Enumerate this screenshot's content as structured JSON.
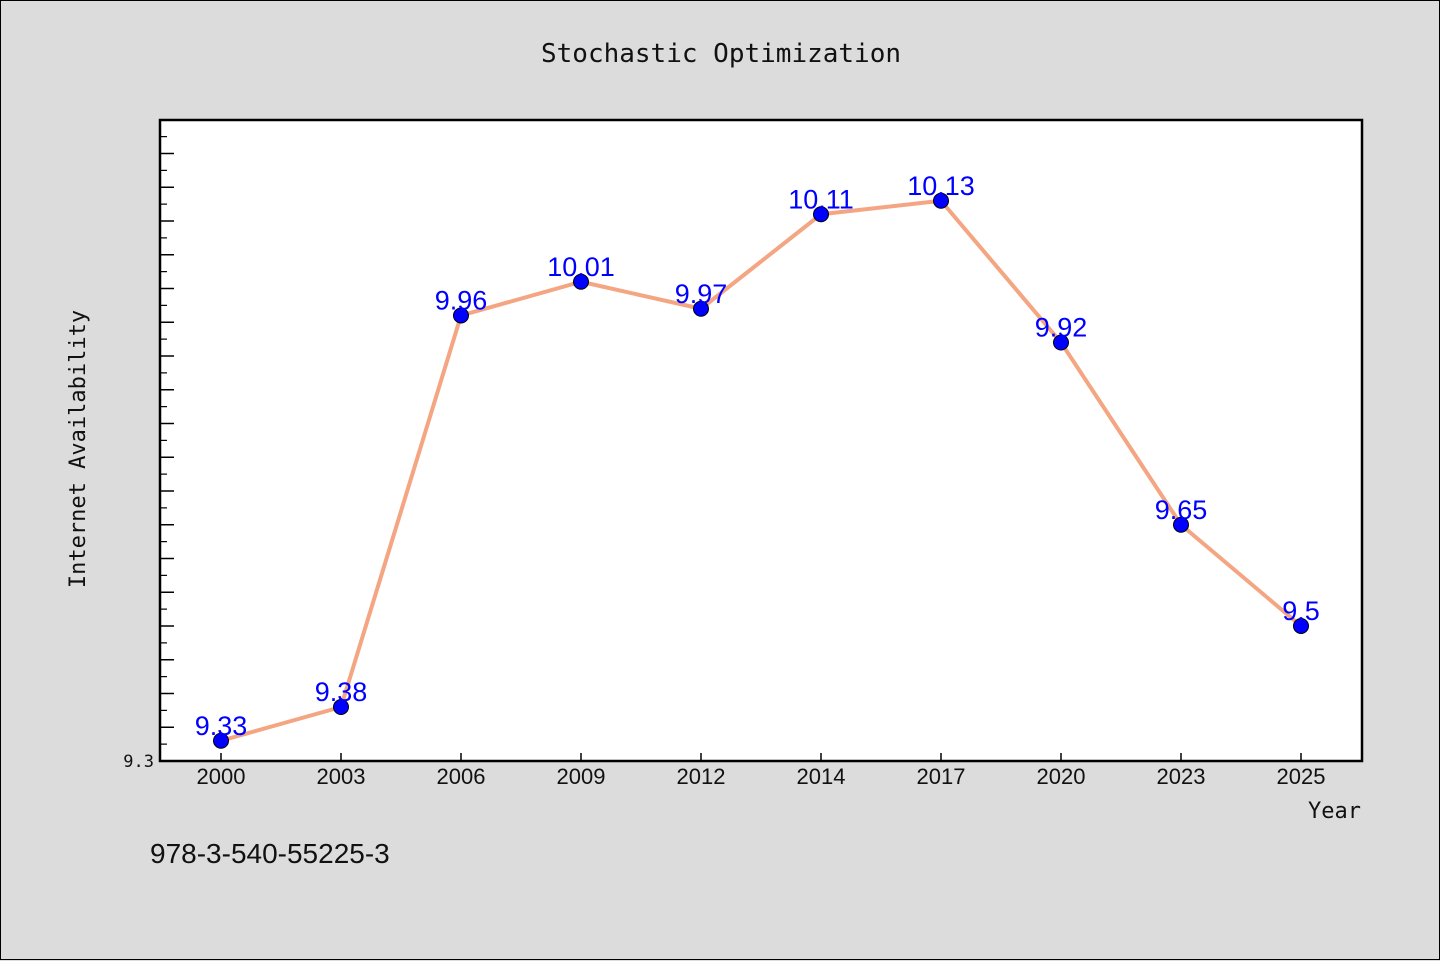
{
  "chart_data": {
    "type": "line",
    "title": "Stochastic Optimization",
    "xlabel": "Year",
    "ylabel": "Internet Availability",
    "categories": [
      "2000",
      "2003",
      "2006",
      "2009",
      "2012",
      "2014",
      "2017",
      "2020",
      "2023",
      "2025"
    ],
    "series": [
      {
        "values": [
          9.33,
          9.38,
          9.96,
          10.01,
          9.97,
          10.11,
          10.13,
          9.92,
          9.65,
          9.5
        ],
        "line_color": "#f4a582",
        "marker_color": "#0000ff"
      }
    ],
    "data_labels": [
      "9.33",
      "9.38",
      "9.96",
      "10.01",
      "9.97",
      "10.11",
      "10.13",
      "9.92",
      "9.65",
      "9.5"
    ],
    "data_label_color": "#0000ff",
    "ylim": [
      9.3,
      10.25
    ],
    "yticks_labeled": [
      "9.3"
    ],
    "grid": false,
    "legend": "none"
  },
  "annotation": {
    "isbn": "978-3-540-55225-3"
  }
}
